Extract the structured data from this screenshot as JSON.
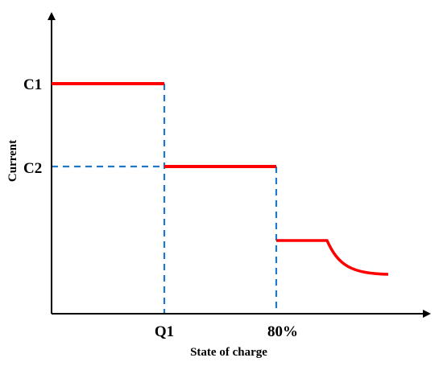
{
  "chart_data": {
    "type": "line",
    "title": "",
    "xlabel": "State of charge",
    "ylabel": "Current",
    "x_ticks": [
      "Q1",
      "80%"
    ],
    "y_ticks": [
      "C1",
      "C2"
    ],
    "axis_color": "#000000",
    "series_color": "#ff0000",
    "guide_color": "#1f77c9",
    "grid": false,
    "segments": [
      {
        "name": "",
        "points": [
          [
            0,
            "C1"
          ],
          [
            "Q1",
            "C1"
          ]
        ]
      },
      {
        "name": "",
        "points": [
          [
            "Q1",
            "C2"
          ],
          [
            "80%",
            "C2"
          ]
        ]
      },
      {
        "name": "",
        "shape": "constant-then-decay",
        "points": [
          [
            "80%",
            "below C2"
          ],
          [
            "decay start",
            "below C2"
          ],
          [
            "end",
            "lower asymptote"
          ]
        ]
      }
    ]
  }
}
